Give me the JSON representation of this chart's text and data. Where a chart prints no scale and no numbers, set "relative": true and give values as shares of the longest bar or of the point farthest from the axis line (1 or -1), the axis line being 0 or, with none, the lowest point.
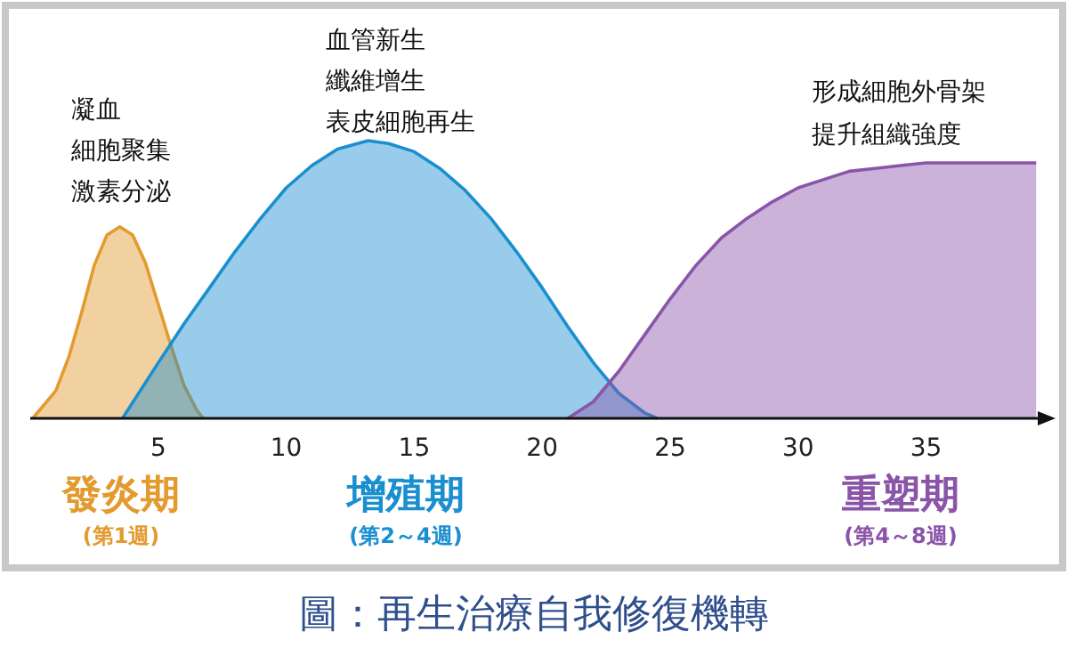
{
  "chart_data": {
    "type": "area",
    "relative": true,
    "title": "圖：再生治療自我修復機轉",
    "xlim": [
      0,
      39.5
    ],
    "xticks": [
      5,
      10,
      15,
      20,
      25,
      30,
      35
    ],
    "grid": false,
    "series": [
      {
        "name": "發炎期",
        "color": "#e39a2e",
        "x": [
          0.1,
          1,
          1.5,
          2,
          2.5,
          3,
          3.5,
          4,
          4.5,
          5,
          5.5,
          6,
          6.5,
          6.75
        ],
        "values": [
          0,
          0.1,
          0.22,
          0.38,
          0.55,
          0.66,
          0.69,
          0.66,
          0.56,
          0.41,
          0.26,
          0.12,
          0.03,
          0
        ]
      },
      {
        "name": "增殖期",
        "color": "#1a8fd0",
        "x": [
          3.6,
          5,
          6,
          7,
          8,
          9,
          10,
          11,
          12,
          13.2,
          14,
          15,
          16,
          17,
          18,
          19,
          20,
          21,
          22,
          23,
          24,
          24.5
        ],
        "values": [
          0,
          0.2,
          0.34,
          0.47,
          0.6,
          0.72,
          0.83,
          0.91,
          0.97,
          1,
          0.99,
          0.96,
          0.9,
          0.82,
          0.72,
          0.6,
          0.47,
          0.33,
          0.2,
          0.09,
          0.02,
          0
        ]
      },
      {
        "name": "重塑期",
        "color": "#8a55a8",
        "x": [
          21,
          22,
          23,
          24,
          25,
          26,
          27,
          28,
          29,
          30,
          31,
          32,
          33,
          34,
          35,
          36,
          39.3
        ],
        "values": [
          0,
          0.06,
          0.17,
          0.3,
          0.43,
          0.55,
          0.65,
          0.72,
          0.78,
          0.83,
          0.86,
          0.89,
          0.9,
          0.91,
          0.92,
          0.92,
          0.92
        ]
      }
    ],
    "annotations": [
      "凝血",
      "細胞聚集",
      "激素分泌",
      "血管新生",
      "纖維增生",
      "表皮細胞再生",
      "形成細胞外骨架",
      "提升組織強度",
      "(第1週)",
      "(第2～4週)",
      "(第4～8週)"
    ]
  }
}
